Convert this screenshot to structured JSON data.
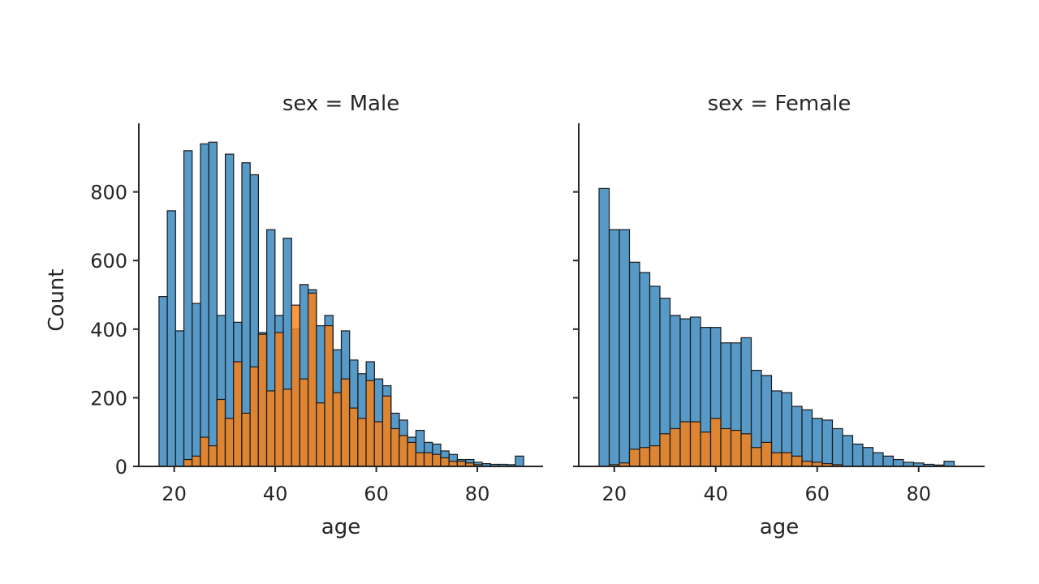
{
  "chart_data": [
    {
      "type": "bar",
      "title": "sex =  Male",
      "xlabel": "age",
      "ylabel": "Count",
      "xlim": [
        13,
        93
      ],
      "ylim": [
        0,
        1000
      ],
      "xticks": [
        20,
        40,
        60,
        80
      ],
      "yticks": [
        0,
        200,
        400,
        600,
        800
      ],
      "bin_width": 1.64,
      "colors": [
        "#1f77b4",
        "#ff7f0e"
      ],
      "series": [
        {
          "bins_start": 17,
          "values": [
            495,
            745,
            395,
            920,
            475,
            940,
            945,
            440,
            910,
            420,
            885,
            850,
            390,
            690,
            440,
            665,
            400,
            530,
            515,
            410,
            440,
            340,
            395,
            310,
            270,
            305,
            255,
            235,
            155,
            135,
            85,
            105,
            70,
            65,
            45,
            35,
            20,
            20,
            12,
            8,
            6,
            6,
            5,
            30
          ]
        },
        {
          "bins_start": 21.9,
          "values": [
            20,
            30,
            85,
            60,
            195,
            140,
            305,
            155,
            290,
            385,
            220,
            390,
            225,
            470,
            255,
            505,
            185,
            410,
            215,
            255,
            170,
            140,
            250,
            130,
            205,
            110,
            90,
            70,
            40,
            40,
            35,
            25,
            15,
            15,
            10,
            5
          ]
        }
      ]
    },
    {
      "type": "bar",
      "title": "sex =  Female",
      "xlabel": "age",
      "ylabel": "",
      "xlim": [
        13,
        93
      ],
      "ylim": [
        0,
        1000
      ],
      "xticks": [
        20,
        40,
        60,
        80
      ],
      "yticks": [
        0,
        200,
        400,
        600,
        800
      ],
      "bin_width": 2.0,
      "colors": [
        "#1f77b4",
        "#ff7f0e"
      ],
      "series": [
        {
          "bins_start": 17,
          "values": [
            810,
            690,
            690,
            595,
            565,
            525,
            490,
            440,
            430,
            435,
            405,
            405,
            360,
            360,
            375,
            280,
            265,
            220,
            215,
            175,
            165,
            140,
            135,
            110,
            90,
            65,
            55,
            40,
            30,
            20,
            12,
            10,
            6,
            4,
            15
          ]
        },
        {
          "bins_start": 17,
          "values": [
            0,
            5,
            10,
            50,
            55,
            60,
            95,
            110,
            130,
            130,
            100,
            140,
            110,
            105,
            95,
            55,
            70,
            40,
            40,
            30,
            15,
            12,
            8,
            5
          ]
        }
      ]
    }
  ]
}
